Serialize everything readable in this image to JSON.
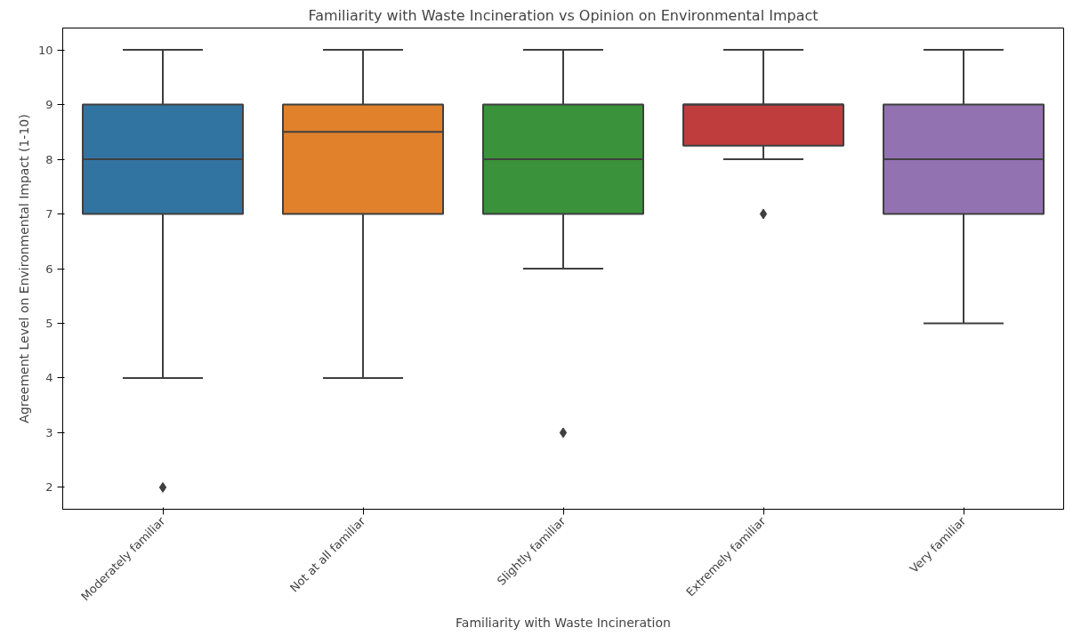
{
  "chart_data": {
    "type": "box",
    "title": "Familiarity with Waste Incineration vs Opinion on Environmental Impact",
    "xlabel": "Familiarity with Waste Incineration",
    "ylabel": "Agreement Level on Environmental Impact (1-10)",
    "categories": [
      "Moderately familiar",
      "Not at all familiar",
      "Slightly familiar",
      "Extremely familiar",
      "Very familiar"
    ],
    "colors": [
      "#3274a1",
      "#e1812c",
      "#3a923a",
      "#c03d3e",
      "#9372b2"
    ],
    "boxes": [
      {
        "low": 4,
        "q1": 7,
        "median": 8,
        "q3": 9,
        "high": 10,
        "outliers": [
          2
        ]
      },
      {
        "low": 4,
        "q1": 7,
        "median": 8.5,
        "q3": 9,
        "high": 10
      },
      {
        "low": 6,
        "q1": 7,
        "median": 8,
        "q3": 9,
        "high": 10,
        "outliers": [
          3
        ]
      },
      {
        "low": 8,
        "q1": 8.25,
        "median": 9,
        "q3": 9,
        "high": 10,
        "outliers": [
          7
        ]
      },
      {
        "low": 5,
        "q1": 7,
        "median": 8,
        "q3": 9,
        "high": 10
      }
    ],
    "ylim": [
      1.6,
      10.4
    ],
    "yticks": [
      2,
      3,
      4,
      5,
      6,
      7,
      8,
      9,
      10
    ],
    "grid": false,
    "marker": "diamond"
  }
}
